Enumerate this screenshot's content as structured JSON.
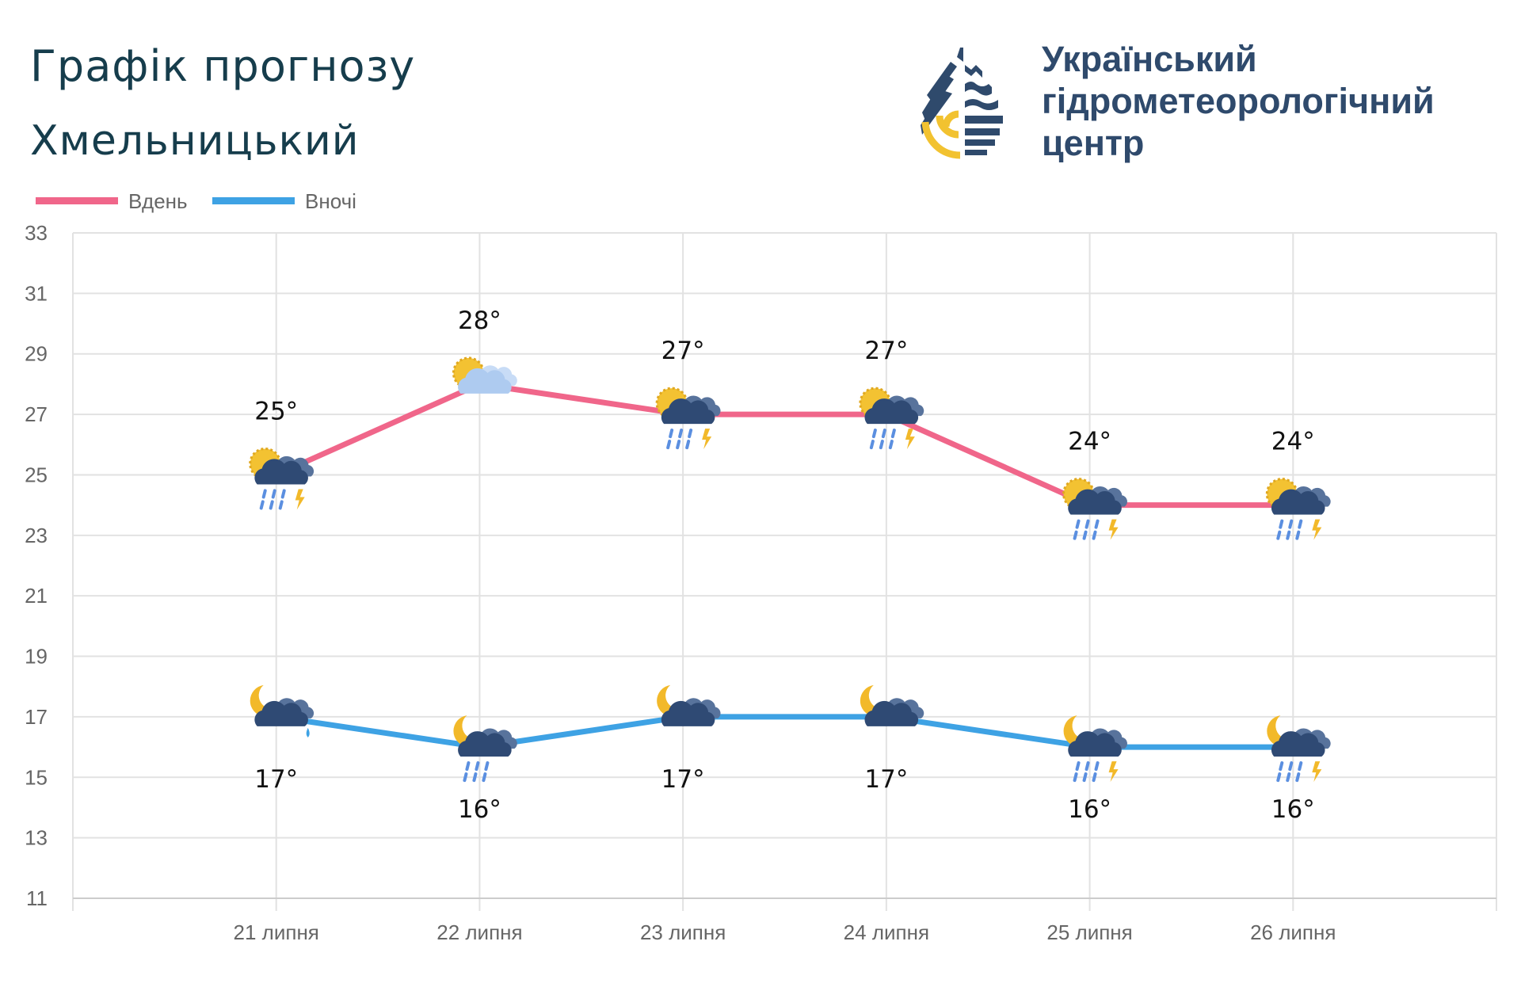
{
  "header": {
    "title": "Графік прогнозу",
    "city": "Хмельницький",
    "org_line1": "Український",
    "org_line2": "гідрометеорологічний",
    "org_line3": "центр"
  },
  "colors": {
    "day": "#f0668a",
    "night": "#3ea2e4",
    "title": "#163d4c",
    "org": "#2f4a6c",
    "logo_yellow": "#f2c230"
  },
  "chart_data": {
    "type": "line",
    "title": "Графік прогнозу",
    "xlabel": "",
    "ylabel": "",
    "categories": [
      "21 липня",
      "22 липня",
      "23 липня",
      "24 липня",
      "25 липня",
      "26 липня"
    ],
    "ylim": [
      11,
      33
    ],
    "yticks": [
      33,
      31,
      29,
      27,
      25,
      23,
      21,
      19,
      17,
      15,
      13,
      11
    ],
    "grid": true,
    "legend_position": "top-left",
    "series": [
      {
        "name": "Вдень",
        "values": [
          25,
          28,
          27,
          27,
          24,
          24
        ],
        "labels": [
          "25°",
          "28°",
          "27°",
          "27°",
          "24°",
          "24°"
        ],
        "icons": [
          "sun-cloud-thunderstorm-icon",
          "sun-cloud-icon",
          "sun-cloud-thunderstorm-icon",
          "sun-cloud-thunderstorm-icon",
          "sun-cloud-thunderstorm-icon",
          "sun-cloud-thunderstorm-icon"
        ]
      },
      {
        "name": "Вночі",
        "values": [
          17,
          16,
          17,
          17,
          16,
          16
        ],
        "labels": [
          "17°",
          "16°",
          "17°",
          "17°",
          "16°",
          "16°"
        ],
        "icons": [
          "moon-cloud-drizzle-icon",
          "moon-cloud-rain-icon",
          "moon-cloud-icon",
          "moon-cloud-icon",
          "moon-cloud-thunderstorm-icon",
          "moon-cloud-thunderstorm-icon"
        ]
      }
    ]
  }
}
